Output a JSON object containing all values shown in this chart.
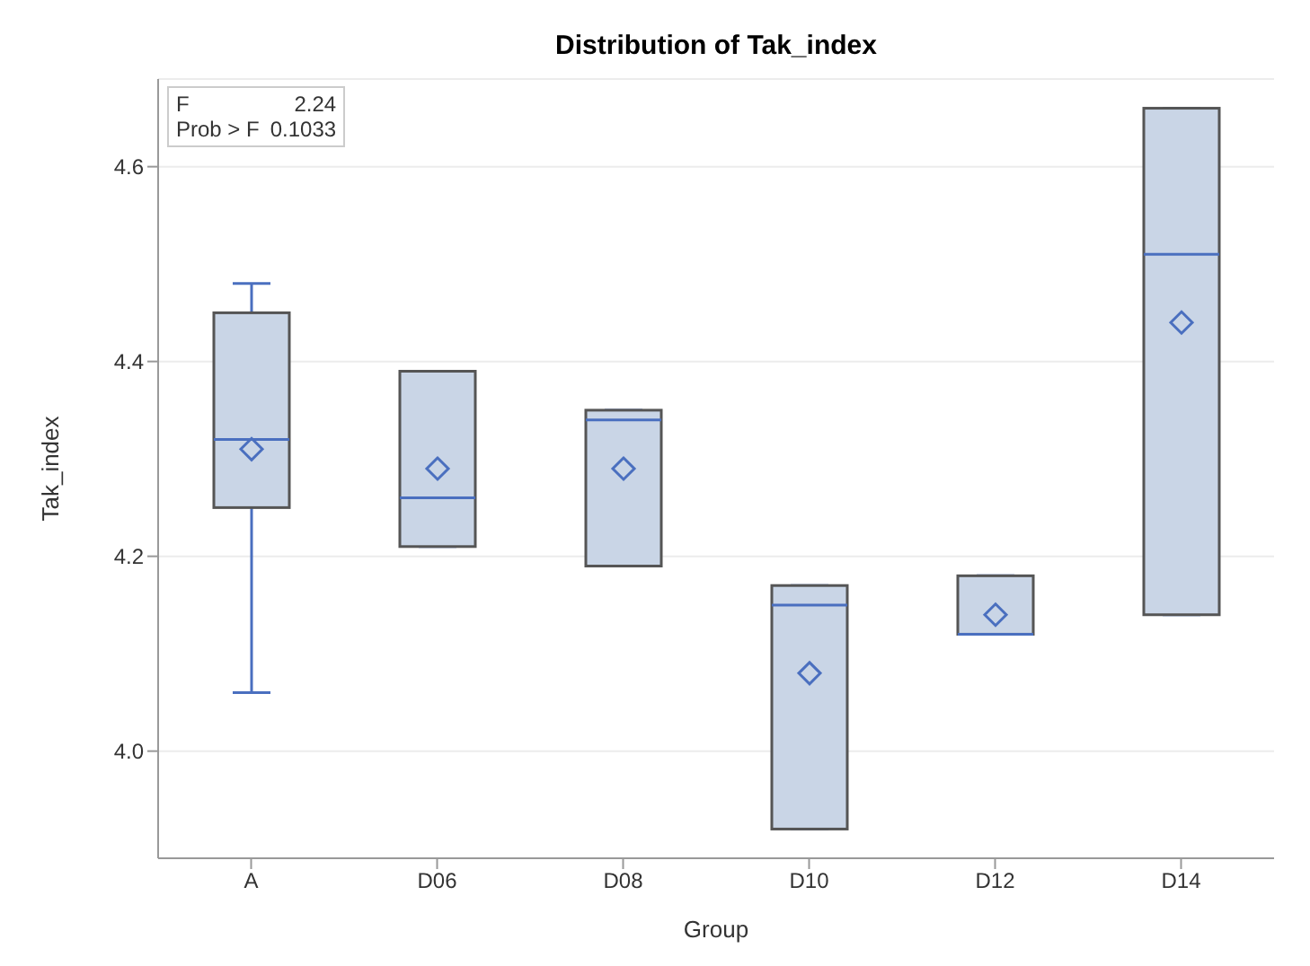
{
  "chart_data": {
    "type": "box",
    "title": "Distribution of Tak_index",
    "xlabel": "Group",
    "ylabel": "Tak_index",
    "categories": [
      "A",
      "D06",
      "D08",
      "D10",
      "D12",
      "D14"
    ],
    "boxes": [
      {
        "low": 4.06,
        "q1": 4.25,
        "median": 4.32,
        "q3": 4.45,
        "high": 4.48,
        "mean": 4.31
      },
      {
        "low": 4.21,
        "q1": 4.21,
        "median": 4.26,
        "q3": 4.39,
        "high": 4.39,
        "mean": 4.29
      },
      {
        "low": 4.19,
        "q1": 4.19,
        "median": 4.34,
        "q3": 4.35,
        "high": 4.35,
        "mean": 4.29
      },
      {
        "low": 3.92,
        "q1": 3.92,
        "median": 4.15,
        "q3": 4.17,
        "high": 4.17,
        "mean": 4.08
      },
      {
        "low": 4.12,
        "q1": 4.12,
        "median": 4.12,
        "q3": 4.18,
        "high": 4.18,
        "mean": 4.14
      },
      {
        "low": 4.14,
        "q1": 4.14,
        "median": 4.51,
        "q3": 4.66,
        "high": 4.66,
        "mean": 4.44
      }
    ],
    "color": "#c9d5e6",
    "ylim": [
      3.89,
      4.69
    ],
    "yticks": [
      {
        "value": 4,
        "label": "4.0"
      },
      {
        "value": 4.2,
        "label": "4.2"
      },
      {
        "value": 4.4,
        "label": "4.4"
      },
      {
        "value": 4.6,
        "label": "4.6"
      }
    ],
    "grid": "y",
    "annotations": [
      "F",
      "2.24",
      "Prob > F",
      "0.1033"
    ]
  }
}
